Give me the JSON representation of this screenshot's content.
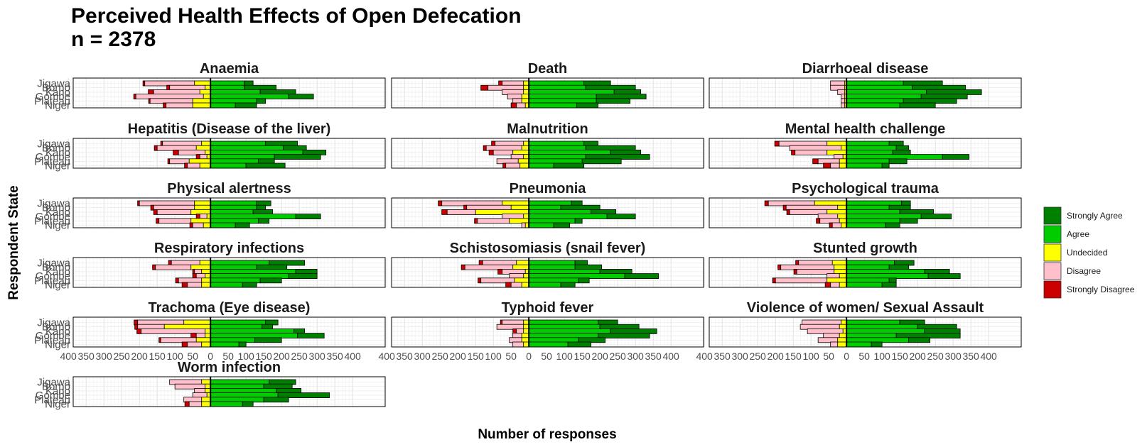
{
  "chart_data": {
    "type": "bar",
    "subtype": "diverging stacked horizontal bar (faceted)",
    "title": "Perceived Health Effects of Open Defecation",
    "subtitle": "n = 2378",
    "xlabel": "Number of responses",
    "ylabel": "Respondent State",
    "states": [
      "Jigawa",
      "Borno",
      "Kano",
      "Gombe",
      "Plateau",
      "Niger"
    ],
    "responses": [
      "Strongly Disagree",
      "Disagree",
      "Undecided",
      "Agree",
      "Strongly Agree"
    ],
    "colors": {
      "Strongly Agree": "#008000",
      "Agree": "#00cc00",
      "Undecided": "#ffff00",
      "Disagree": "#ffc0cb",
      "Strongly Disagree": "#cc0000"
    },
    "xlim": [
      -400,
      400
    ],
    "xticks": [
      -400,
      -350,
      -300,
      -250,
      -200,
      -150,
      -100,
      -50,
      0,
      50,
      100,
      150,
      200,
      250,
      300,
      350,
      400
    ],
    "legend": {
      "position": "right",
      "order": [
        "Strongly Agree",
        "Agree",
        "Undecided",
        "Disagree",
        "Strongly Disagree"
      ]
    },
    "grid": true,
    "panels": [
      {
        "title": "Anaemia",
        "data": [
          [
            5,
            140,
            45,
            95,
            25
          ],
          [
            8,
            100,
            15,
            95,
            90
          ],
          [
            15,
            130,
            30,
            140,
            100
          ],
          [
            6,
            190,
            20,
            220,
            70
          ],
          [
            4,
            120,
            50,
            130,
            25
          ],
          [
            8,
            75,
            50,
            70,
            60
          ]
        ]
      },
      {
        "title": "Death",
        "data": [
          [
            10,
            60,
            15,
            155,
            75
          ],
          [
            20,
            100,
            15,
            160,
            140
          ],
          [
            0,
            60,
            15,
            240,
            75
          ],
          [
            0,
            40,
            20,
            190,
            140
          ],
          [
            0,
            25,
            20,
            190,
            95
          ],
          [
            15,
            25,
            10,
            135,
            60
          ]
        ]
      },
      {
        "title": "Diarrhoeal disease",
        "data": [
          [
            0,
            40,
            5,
            160,
            110
          ],
          [
            0,
            40,
            5,
            185,
            150
          ],
          [
            0,
            20,
            5,
            225,
            155
          ],
          [
            0,
            10,
            5,
            210,
            130
          ],
          [
            0,
            10,
            5,
            160,
            150
          ],
          [
            0,
            10,
            5,
            150,
            100
          ]
        ]
      },
      {
        "title": "Hepatitis (Disease of the liver)",
        "data": [
          [
            5,
            110,
            25,
            155,
            90
          ],
          [
            8,
            110,
            40,
            205,
            65
          ],
          [
            15,
            75,
            15,
            260,
            65
          ],
          [
            10,
            20,
            10,
            180,
            130
          ],
          [
            5,
            55,
            60,
            135,
            45
          ],
          [
            8,
            35,
            30,
            100,
            110
          ]
        ]
      },
      {
        "title": "Malnutrition",
        "data": [
          [
            10,
            80,
            15,
            155,
            40
          ],
          [
            8,
            100,
            20,
            160,
            140
          ],
          [
            12,
            55,
            45,
            230,
            85
          ],
          [
            0,
            35,
            15,
            160,
            180
          ],
          [
            0,
            60,
            30,
            150,
            110
          ],
          [
            8,
            40,
            25,
            70,
            85
          ]
        ]
      },
      {
        "title": "Mental health challenge",
        "data": [
          [
            12,
            135,
            55,
            120,
            40
          ],
          [
            0,
            145,
            15,
            140,
            35
          ],
          [
            10,
            90,
            55,
            130,
            50
          ],
          [
            0,
            25,
            10,
            270,
            75
          ],
          [
            15,
            60,
            20,
            120,
            50
          ],
          [
            20,
            25,
            20,
            100,
            20
          ]
        ]
      },
      {
        "title": "Physical alertness",
        "data": [
          [
            5,
            155,
            45,
            130,
            40
          ],
          [
            8,
            115,
            45,
            130,
            25
          ],
          [
            10,
            95,
            55,
            120,
            55
          ],
          [
            10,
            20,
            10,
            240,
            70
          ],
          [
            8,
            90,
            55,
            135,
            30
          ],
          [
            8,
            30,
            20,
            70,
            40
          ]
        ]
      },
      {
        "title": "Pneumonia",
        "data": [
          [
            10,
            170,
            75,
            120,
            30
          ],
          [
            8,
            125,
            50,
            90,
            110
          ],
          [
            15,
            80,
            150,
            175,
            70
          ],
          [
            0,
            60,
            15,
            220,
            80
          ],
          [
            8,
            90,
            55,
            130,
            20
          ],
          [
            0,
            10,
            10,
            70,
            45
          ]
        ]
      },
      {
        "title": "Psychological trauma",
        "data": [
          [
            10,
            130,
            90,
            155,
            25
          ],
          [
            8,
            145,
            25,
            120,
            60
          ],
          [
            8,
            105,
            55,
            150,
            95
          ],
          [
            0,
            55,
            25,
            210,
            85
          ],
          [
            10,
            55,
            20,
            150,
            50
          ],
          [
            8,
            25,
            15,
            110,
            40
          ]
        ]
      },
      {
        "title": "Respiratory infections",
        "data": [
          [
            8,
            80,
            30,
            165,
            100
          ],
          [
            8,
            100,
            55,
            130,
            85
          ],
          [
            5,
            20,
            25,
            240,
            60
          ],
          [
            10,
            25,
            15,
            220,
            80
          ],
          [
            8,
            65,
            25,
            140,
            60
          ],
          [
            15,
            40,
            25,
            90,
            40
          ]
        ]
      },
      {
        "title": "Schistosomiasis (snail fever)",
        "data": [
          [
            10,
            95,
            35,
            130,
            35
          ],
          [
            10,
            135,
            45,
            130,
            75
          ],
          [
            12,
            65,
            10,
            200,
            90
          ],
          [
            0,
            40,
            15,
            270,
            95
          ],
          [
            8,
            95,
            40,
            140,
            30
          ],
          [
            15,
            30,
            20,
            90,
            40
          ]
        ]
      },
      {
        "title": "Stunted growth",
        "data": [
          [
            8,
            95,
            40,
            135,
            55
          ],
          [
            8,
            150,
            35,
            120,
            55
          ],
          [
            8,
            105,
            35,
            220,
            70
          ],
          [
            0,
            35,
            20,
            230,
            90
          ],
          [
            8,
            145,
            55,
            120,
            20
          ],
          [
            15,
            25,
            20,
            100,
            40
          ]
        ]
      },
      {
        "title": "Trachoma (Eye disease)",
        "data": [
          [
            10,
            130,
            75,
            155,
            35
          ],
          [
            8,
            75,
            130,
            145,
            30
          ],
          [
            12,
            180,
            15,
            235,
            30
          ],
          [
            15,
            25,
            15,
            245,
            75
          ],
          [
            5,
            100,
            40,
            125,
            75
          ],
          [
            15,
            40,
            25,
            80,
            20
          ]
        ]
      },
      {
        "title": "Typhoid fever",
        "data": [
          [
            5,
            60,
            15,
            195,
            55
          ],
          [
            0,
            75,
            15,
            200,
            110
          ],
          [
            10,
            20,
            15,
            230,
            130
          ],
          [
            0,
            25,
            20,
            195,
            145
          ],
          [
            0,
            35,
            20,
            140,
            75
          ],
          [
            0,
            30,
            15,
            110,
            65
          ]
        ]
      },
      {
        "title": "Violence of women/ Sexual Assault",
        "data": [
          [
            0,
            110,
            15,
            150,
            70
          ],
          [
            0,
            110,
            20,
            200,
            110
          ],
          [
            0,
            100,
            10,
            220,
            100
          ],
          [
            0,
            45,
            20,
            140,
            180
          ],
          [
            0,
            55,
            25,
            175,
            60
          ],
          [
            0,
            20,
            25,
            70,
            30
          ]
        ]
      },
      {
        "title": "Worm infection",
        "data": [
          [
            0,
            90,
            25,
            165,
            75
          ],
          [
            0,
            85,
            15,
            150,
            80
          ],
          [
            0,
            30,
            15,
            185,
            70
          ],
          [
            0,
            40,
            10,
            190,
            145
          ],
          [
            0,
            50,
            25,
            150,
            70
          ],
          [
            12,
            35,
            25,
            90,
            30
          ]
        ]
      }
    ]
  }
}
